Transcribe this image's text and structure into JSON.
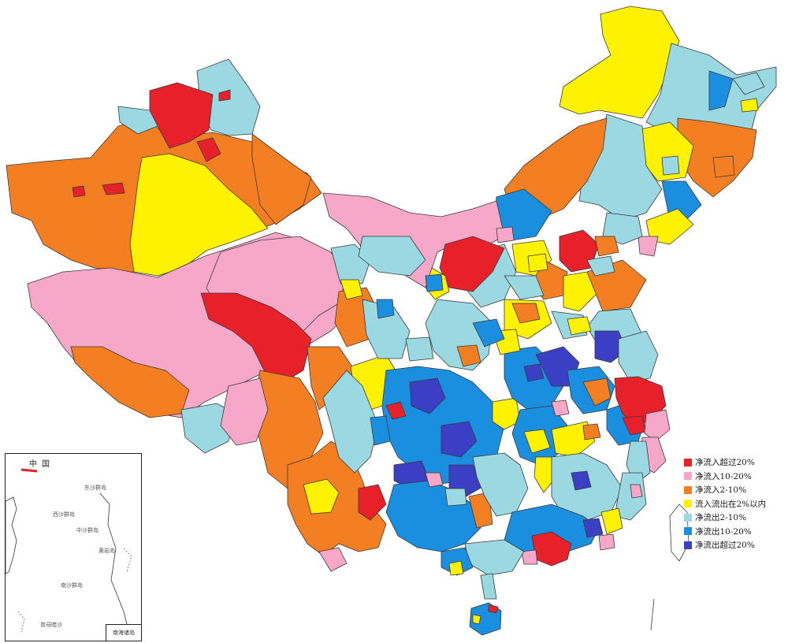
{
  "colors": {
    "inflow_over_20": "#e8202a",
    "inflow_10_20": "#f7a8c8",
    "inflow_2_10": "#f37f22",
    "within_2": "#fef200",
    "outflow_2_10": "#9ad8e2",
    "outflow_10_20": "#1a8fe0",
    "outflow_over_20": "#3a3fc4",
    "border": "#3a3a3a"
  },
  "legend": {
    "items": [
      {
        "key": "inflow_over_20",
        "label": "净流入超过20%"
      },
      {
        "key": "inflow_10_20",
        "label": "净流入10-20%"
      },
      {
        "key": "inflow_2_10",
        "label": "净流入2-10%"
      },
      {
        "key": "within_2",
        "label": "流入流出在2%以内"
      },
      {
        "key": "outflow_2_10",
        "label": "净流出2-10%"
      },
      {
        "key": "outflow_10_20",
        "label": "净流出10-20%"
      },
      {
        "key": "outflow_over_20",
        "label": "净流出超过20%"
      }
    ]
  },
  "inset": {
    "title": "中国",
    "corner_label": "南海诸岛",
    "labels": [
      "东沙群岛",
      "西沙群岛",
      "中沙群岛",
      "南沙群岛",
      "黄岩岛",
      "曾母暗沙"
    ]
  }
}
